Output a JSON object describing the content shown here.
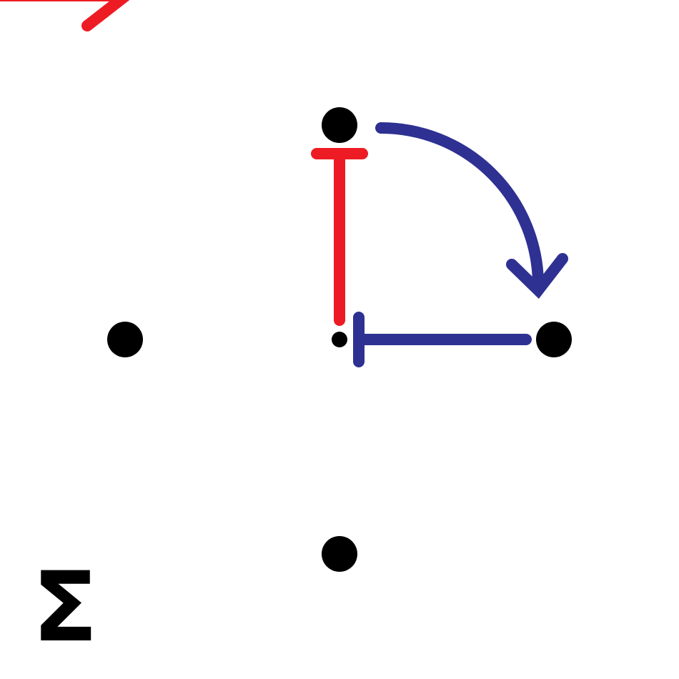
{
  "diagram": {
    "symbol": "Σ",
    "colors": {
      "red": "#ED1C24",
      "blue": "#2E3192",
      "black": "#000000",
      "background": "#FFFFFF"
    },
    "nodes": [
      {
        "id": "top",
        "label": ""
      },
      {
        "id": "left",
        "label": ""
      },
      {
        "id": "center",
        "label": ""
      },
      {
        "id": "right",
        "label": ""
      },
      {
        "id": "bottom",
        "label": ""
      }
    ],
    "edges": [
      {
        "id": "red-corner-arrow",
        "kind": "arrow",
        "color": "red"
      },
      {
        "id": "blue-curved-arrow",
        "kind": "arrow",
        "from": "top",
        "to": "right",
        "color": "blue"
      },
      {
        "id": "red-inhibition",
        "kind": "inhibition",
        "from": "center",
        "to": "top",
        "color": "red"
      },
      {
        "id": "blue-inhibition",
        "kind": "inhibition",
        "from": "right",
        "to": "center",
        "color": "blue"
      }
    ]
  }
}
